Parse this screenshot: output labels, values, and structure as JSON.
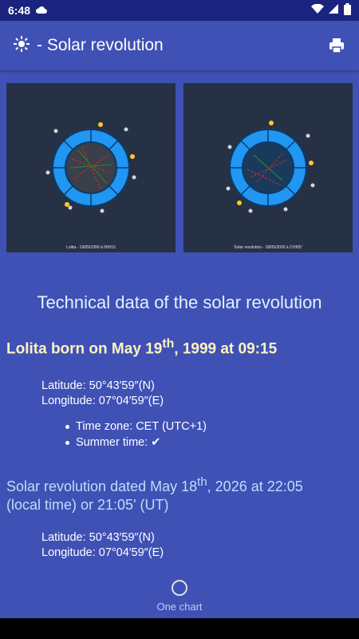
{
  "status_bar": {
    "time": "6:48"
  },
  "app_bar": {
    "icon": "sun-icon",
    "title": "- Solar revolution",
    "print_icon": "printer-icon"
  },
  "charts": [
    {
      "caption": "Lolita - 19/05/1999 à 09H15"
    },
    {
      "caption": "Solar revolution - 18/05/2026 à 21H05'"
    }
  ],
  "section_title": "Technical data of the solar revolution",
  "born": {
    "prefix": "Lolita born on May 19",
    "sup": "th",
    "suffix": ", 1999 at 09:15",
    "latitude": "Latitude: 50°43′59″(N)",
    "longitude": "Longitude: 07°04′59″(E)",
    "time_zone": "Time zone: CET (UTC+1)",
    "summer_time": "Summer time: ✔"
  },
  "revolution": {
    "prefix": "Solar revolution dated May 18",
    "sup": "th",
    "suffix": ", 2026 at 22:05",
    "line2": "(local time) or 21:05' (UT)",
    "latitude": "Latitude: 50°43′59″(N)",
    "longitude": "Longitude: 07°04′59″(E)"
  },
  "bottom_nav": {
    "label": "One chart"
  },
  "colors": {
    "primary": "#3f51b5",
    "status": "#1a237e",
    "chart_bg": "#263145",
    "wheel": "#1e88e5"
  }
}
